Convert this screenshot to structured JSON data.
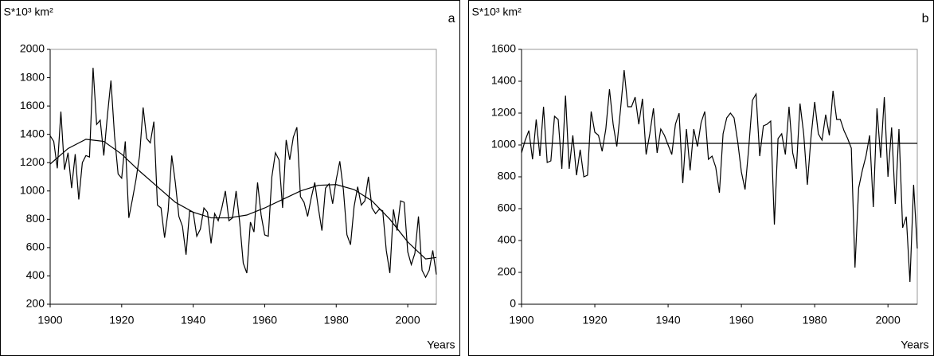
{
  "chart_data": [
    {
      "type": "line",
      "label": "a",
      "ylabel": "S*10³ km²",
      "xlabel": "Years",
      "xlim": [
        1900,
        2008
      ],
      "xticks": [
        1900,
        1920,
        1940,
        1960,
        1980,
        2000
      ],
      "ylim": [
        200,
        2000
      ],
      "yticks": [
        200,
        400,
        600,
        800,
        1000,
        1200,
        1400,
        1600,
        1800,
        2000
      ],
      "series": [
        {
          "color": "#000000",
          "x": [
            1900,
            1901,
            1902,
            1903,
            1904,
            1905,
            1906,
            1907,
            1908,
            1909,
            1910,
            1911,
            1912,
            1913,
            1914,
            1915,
            1916,
            1917,
            1918,
            1919,
            1920,
            1921,
            1922,
            1923,
            1924,
            1925,
            1926,
            1927,
            1928,
            1929,
            1930,
            1931,
            1932,
            1933,
            1934,
            1935,
            1936,
            1937,
            1938,
            1939,
            1940,
            1941,
            1942,
            1943,
            1944,
            1945,
            1946,
            1947,
            1948,
            1949,
            1950,
            1951,
            1952,
            1953,
            1954,
            1955,
            1956,
            1957,
            1958,
            1959,
            1960,
            1961,
            1962,
            1963,
            1964,
            1965,
            1966,
            1967,
            1968,
            1969,
            1970,
            1971,
            1972,
            1973,
            1974,
            1975,
            1976,
            1977,
            1978,
            1979,
            1980,
            1981,
            1982,
            1983,
            1984,
            1985,
            1986,
            1987,
            1988,
            1989,
            1990,
            1991,
            1992,
            1993,
            1994,
            1995,
            1996,
            1997,
            1998,
            1999,
            2000,
            2001,
            2002,
            2003,
            2004,
            2005,
            2006,
            2007,
            2008
          ],
          "values": [
            1390,
            1350,
            1160,
            1560,
            1150,
            1270,
            1020,
            1260,
            940,
            1200,
            1250,
            1240,
            1870,
            1470,
            1500,
            1250,
            1530,
            1780,
            1390,
            1120,
            1090,
            1350,
            810,
            940,
            1080,
            1250,
            1590,
            1370,
            1340,
            1490,
            900,
            880,
            670,
            860,
            1250,
            1060,
            820,
            750,
            550,
            860,
            850,
            680,
            730,
            880,
            850,
            630,
            840,
            790,
            880,
            1000,
            790,
            810,
            1000,
            780,
            490,
            420,
            780,
            710,
            1060,
            830,
            690,
            680,
            1100,
            1270,
            1220,
            880,
            1360,
            1220,
            1380,
            1450,
            960,
            920,
            820,
            950,
            1060,
            880,
            720,
            1020,
            1050,
            910,
            1080,
            1210,
            1010,
            690,
            620,
            890,
            1030,
            900,
            930,
            1100,
            880,
            840,
            870,
            860,
            580,
            420,
            870,
            720,
            930,
            920,
            570,
            480,
            560,
            820,
            440,
            390,
            440,
            580,
            410
          ]
        },
        {
          "color": "#000000",
          "x": [
            1900,
            1905,
            1910,
            1915,
            1920,
            1925,
            1930,
            1935,
            1940,
            1945,
            1950,
            1955,
            1960,
            1965,
            1970,
            1975,
            1980,
            1985,
            1990,
            1995,
            2000,
            2005,
            2008
          ],
          "values": [
            1190,
            1300,
            1365,
            1350,
            1260,
            1140,
            1030,
            920,
            850,
            810,
            810,
            830,
            880,
            940,
            1000,
            1040,
            1045,
            1010,
            930,
            800,
            640,
            520,
            530
          ]
        }
      ]
    },
    {
      "type": "line",
      "label": "b",
      "ylabel": "S*10³ km²",
      "xlabel": "Years",
      "xlim": [
        1900,
        2008
      ],
      "xticks": [
        1900,
        1920,
        1940,
        1960,
        1980,
        2000
      ],
      "ylim": [
        0,
        1600
      ],
      "yticks": [
        0,
        200,
        400,
        600,
        800,
        1000,
        1200,
        1400,
        1600
      ],
      "series": [
        {
          "color": "#000000",
          "x": [
            1900,
            1901,
            1902,
            1903,
            1904,
            1905,
            1906,
            1907,
            1908,
            1909,
            1910,
            1911,
            1912,
            1913,
            1914,
            1915,
            1916,
            1917,
            1918,
            1919,
            1920,
            1921,
            1922,
            1923,
            1924,
            1925,
            1926,
            1927,
            1928,
            1929,
            1930,
            1931,
            1932,
            1933,
            1934,
            1935,
            1936,
            1937,
            1938,
            1939,
            1940,
            1941,
            1942,
            1943,
            1944,
            1945,
            1946,
            1947,
            1948,
            1949,
            1950,
            1951,
            1952,
            1953,
            1954,
            1955,
            1956,
            1957,
            1958,
            1959,
            1960,
            1961,
            1962,
            1963,
            1964,
            1965,
            1966,
            1967,
            1968,
            1969,
            1970,
            1971,
            1972,
            1973,
            1974,
            1975,
            1976,
            1977,
            1978,
            1979,
            1980,
            1981,
            1982,
            1983,
            1984,
            1985,
            1986,
            1987,
            1988,
            1989,
            1990,
            1991,
            1992,
            1993,
            1994,
            1995,
            1996,
            1997,
            1998,
            1999,
            2000,
            2001,
            2002,
            2003,
            2004,
            2005,
            2006,
            2007,
            2008
          ],
          "values": [
            950,
            1030,
            1090,
            910,
            1160,
            930,
            1240,
            890,
            900,
            1180,
            1160,
            850,
            1310,
            850,
            1060,
            810,
            970,
            800,
            810,
            1210,
            1080,
            1060,
            960,
            1100,
            1350,
            1130,
            990,
            1220,
            1470,
            1240,
            1240,
            1300,
            1130,
            1290,
            940,
            1070,
            1230,
            950,
            1100,
            1060,
            1000,
            940,
            1130,
            1200,
            760,
            1100,
            840,
            1100,
            990,
            1140,
            1210,
            910,
            930,
            860,
            700,
            1070,
            1170,
            1200,
            1170,
            1020,
            830,
            720,
            980,
            1280,
            1320,
            930,
            1120,
            1130,
            1150,
            500,
            1040,
            1070,
            940,
            1240,
            950,
            850,
            1260,
            1070,
            750,
            1050,
            1270,
            1070,
            1030,
            1190,
            1060,
            1340,
            1160,
            1160,
            1090,
            1040,
            980,
            230,
            730,
            840,
            930,
            1060,
            610,
            1230,
            920,
            1300,
            800,
            1110,
            630,
            1100,
            480,
            550,
            140,
            750,
            350
          ]
        },
        {
          "color": "#000000",
          "x": [
            1900,
            2008
          ],
          "values": [
            1010,
            1010
          ]
        }
      ]
    }
  ]
}
